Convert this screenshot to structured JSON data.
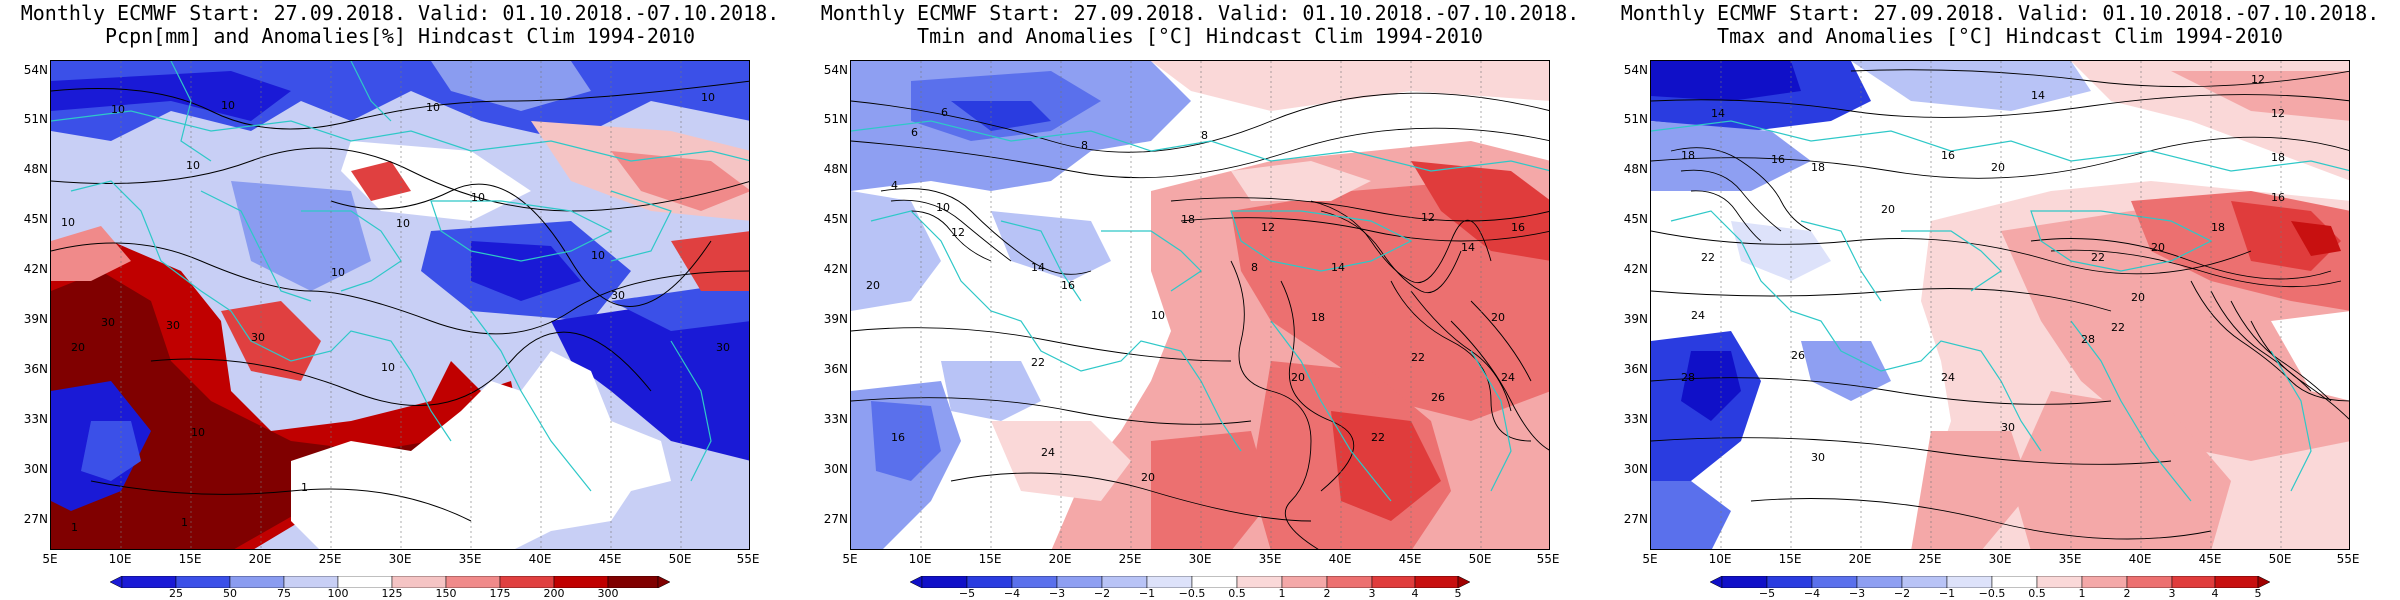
{
  "panels": [
    {
      "title_line1": "Monthly ECMWF Start: 27.09.2018. Valid: 01.10.2018.-07.10.2018.",
      "title_line2": "Pcpn[mm] and Anomalies[%] Hindcast Clim 1994-2010",
      "variable": "precipitation",
      "colorbar": {
        "labels": [
          "25",
          "50",
          "75",
          "100",
          "125",
          "150",
          "175",
          "200",
          "300"
        ],
        "colors": [
          "#1a1ad6",
          "#3b50e8",
          "#8a9cf0",
          "#c8cff5",
          "#ffffff",
          "#f5c4c4",
          "#f08a8a",
          "#e04040",
          "#c00000",
          "#800000"
        ]
      },
      "contour_labels": [
        "10",
        "10",
        "10",
        "10",
        "10",
        "10",
        "10",
        "10",
        "10",
        "10",
        "30",
        "30",
        "30",
        "30",
        "20",
        "10",
        "1",
        "1",
        "1",
        "10",
        "30"
      ]
    },
    {
      "title_line1": "Monthly ECMWF Start: 27.09.2018. Valid: 01.10.2018.-07.10.2018.",
      "title_line2": "Tmin and Anomalies [°C] Hindcast Clim 1994-2010",
      "variable": "tmin",
      "colorbar": {
        "labels": [
          "−5",
          "−4",
          "−3",
          "−2",
          "−1",
          "−0.5",
          "0.5",
          "1",
          "2",
          "3",
          "4",
          "5"
        ],
        "colors": [
          "#1010c8",
          "#2a3ce0",
          "#5a70ec",
          "#8e9ff2",
          "#b8c3f6",
          "#dde2fa",
          "#ffffff",
          "#fad8d8",
          "#f4a8a8",
          "#ec7070",
          "#e03c3c",
          "#c81010",
          "#a00000"
        ]
      },
      "contour_labels": [
        "6",
        "6",
        "8",
        "8",
        "4",
        "10",
        "12",
        "14",
        "16",
        "18",
        "20",
        "22",
        "24",
        "20",
        "16",
        "12",
        "10",
        "8",
        "14",
        "18",
        "20",
        "22",
        "12",
        "14",
        "16",
        "20",
        "22",
        "24",
        "26"
      ]
    },
    {
      "title_line1": "Monthly ECMWF Start: 27.09.2018. Valid: 01.10.2018.-07.10.2018.",
      "title_line2": "Tmax and Anomalies [°C] Hindcast Clim 1994-2010",
      "variable": "tmax",
      "colorbar": {
        "labels": [
          "−5",
          "−4",
          "−3",
          "−2",
          "−1",
          "−0.5",
          "0.5",
          "1",
          "2",
          "3",
          "4",
          "5"
        ],
        "colors": [
          "#1010c8",
          "#2a3ce0",
          "#5a70ec",
          "#8e9ff2",
          "#b8c3f6",
          "#dde2fa",
          "#ffffff",
          "#fad8d8",
          "#f4a8a8",
          "#ec7070",
          "#e03c3c",
          "#c81010",
          "#a00000"
        ]
      },
      "contour_labels": [
        "12",
        "14",
        "12",
        "14",
        "16",
        "16",
        "18",
        "18",
        "20",
        "18",
        "20",
        "22",
        "24",
        "26",
        "28",
        "30",
        "24",
        "22",
        "20",
        "18",
        "16",
        "20",
        "22",
        "28",
        "30"
      ]
    }
  ],
  "axes": {
    "lat_labels": [
      "54N",
      "51N",
      "48N",
      "45N",
      "42N",
      "39N",
      "36N",
      "33N",
      "30N",
      "27N"
    ],
    "lon_labels": [
      "5E",
      "10E",
      "15E",
      "20E",
      "25E",
      "30E",
      "35E",
      "40E",
      "45E",
      "50E",
      "55E"
    ],
    "lat_range": [
      24,
      55
    ],
    "lon_range": [
      5,
      55
    ]
  },
  "style": {
    "coast_color": "#2ec8c8",
    "contour_color": "#000000"
  }
}
